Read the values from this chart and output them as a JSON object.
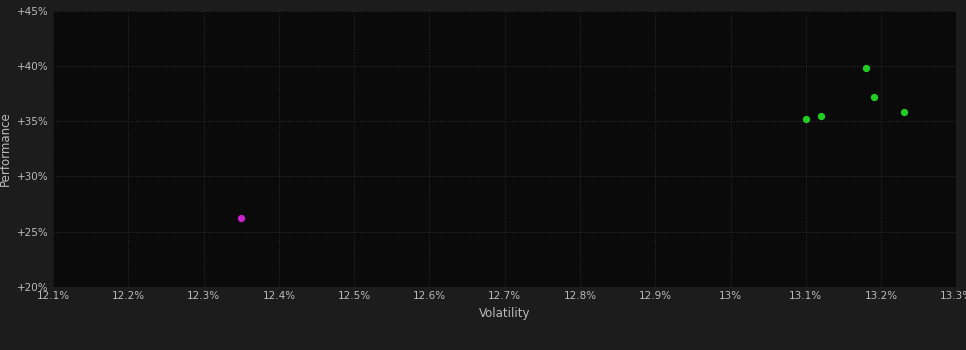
{
  "background_color": "#1c1c1c",
  "plot_bg_color": "#0a0a0a",
  "text_color": "#bbbbbb",
  "xlabel": "Volatility",
  "ylabel": "Performance",
  "xlim": [
    0.121,
    0.133
  ],
  "ylim": [
    0.2,
    0.45
  ],
  "xticks": [
    0.121,
    0.122,
    0.123,
    0.124,
    0.125,
    0.126,
    0.127,
    0.128,
    0.129,
    0.13,
    0.131,
    0.132,
    0.133
  ],
  "xtick_labels": [
    "12.1%",
    "12.2%",
    "12.3%",
    "12.4%",
    "12.5%",
    "12.6%",
    "12.7%",
    "12.8%",
    "12.9%",
    "13%",
    "13.1%",
    "13.2%",
    "13.3%"
  ],
  "yticks": [
    0.2,
    0.25,
    0.3,
    0.35,
    0.4,
    0.45
  ],
  "ytick_labels": [
    "+20%",
    "+25%",
    "+30%",
    "+35%",
    "+40%",
    "+45%"
  ],
  "green_points": [
    [
      0.1318,
      0.398
    ],
    [
      0.1319,
      0.372
    ],
    [
      0.1323,
      0.358
    ],
    [
      0.131,
      0.352
    ],
    [
      0.1312,
      0.355
    ]
  ],
  "magenta_points": [
    [
      0.1235,
      0.262
    ]
  ],
  "green_color": "#22cc22",
  "magenta_color": "#cc22cc",
  "point_size": 18
}
